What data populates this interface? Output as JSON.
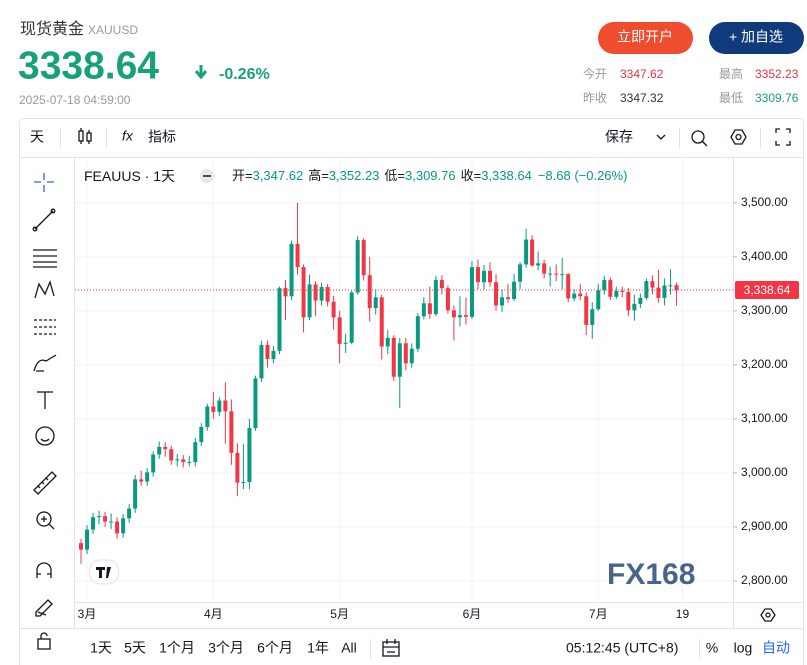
{
  "header": {
    "name": "现货黄金",
    "symbol": "XAUUSD",
    "price": "3338.64",
    "change": "-0.26%",
    "time": "2025-07-18 04:59:00",
    "buttons": [
      "立即开户",
      "+ 加自选"
    ],
    "stats": [
      {
        "label": "今开",
        "value": "3347.62"
      },
      {
        "label": "最高",
        "value": "3352.23"
      },
      {
        "label": "昨收",
        "value": "3347.32"
      },
      {
        "label": "最低",
        "value": "3309.76"
      }
    ]
  },
  "toolbar": {
    "interval": "天",
    "indicators": "指标",
    "save": "保存"
  },
  "ranges": [
    "1天",
    "5天",
    "1个月",
    "3个月",
    "6个月",
    "1年",
    "All"
  ],
  "clock": "05:12:45 (UTC+8)",
  "scale_options": [
    "%",
    "log",
    "自动"
  ],
  "watermark": "FX168",
  "chart_data": {
    "type": "candlestick",
    "title": "FEAUUS · 1天",
    "legend": [
      {
        "label": "开=",
        "value": "3,347.62"
      },
      {
        "label": "高=",
        "value": "3,352.23"
      },
      {
        "label": "低=",
        "value": "3,309.76"
      },
      {
        "label": "收=",
        "value": "3,338.64"
      }
    ],
    "change": "−8.68 (−0.26%)",
    "up_color": "#089981",
    "down_color": "#f23645",
    "open": [
      2870,
      2858,
      2895,
      2918,
      2920,
      2910,
      2910,
      2888,
      2916,
      2934,
      2988,
      2984,
      3001,
      3034,
      3048,
      3044,
      3023,
      3025,
      3020,
      3020,
      3057,
      3085,
      3123,
      3113,
      3134,
      3114,
      3037,
      2982,
      2983,
      3083,
      3175,
      3237,
      3211,
      3226,
      3342,
      3327,
      3424,
      3381,
      3288,
      3349,
      3319,
      3344,
      3317,
      3288,
      3239,
      3241,
      3334,
      3431,
      3366,
      3305,
      3325,
      3234,
      3250,
      3178,
      3240,
      3203,
      3230,
      3290,
      3314,
      3294,
      3357,
      3342,
      3301,
      3288,
      3292,
      3289,
      3381,
      3353,
      3374,
      3353,
      3310,
      3325,
      3322,
      3354,
      3386,
      3432,
      3384,
      3388,
      3369,
      3369,
      3368,
      3368,
      3323,
      3332,
      3327,
      3274,
      3303,
      3338,
      3357,
      3326,
      3337,
      3335,
      3301,
      3313,
      3324,
      3355,
      3343,
      3324,
      3347,
      3347.62
    ],
    "high": [
      2878,
      2903,
      2926,
      2930,
      2928,
      2925,
      2918,
      2924,
      2942,
      2996,
      3004,
      3009,
      3040,
      3058,
      3057,
      3050,
      3035,
      3033,
      3032,
      3065,
      3092,
      3128,
      3150,
      3140,
      3168,
      3136,
      3055,
      3054,
      3100,
      3180,
      3245,
      3245,
      3235,
      3345,
      3357,
      3430,
      3500,
      3386,
      3367,
      3355,
      3352,
      3350,
      3328,
      3300,
      3258,
      3337,
      3438,
      3435,
      3400,
      3340,
      3330,
      3265,
      3255,
      3250,
      3250,
      3240,
      3296,
      3325,
      3345,
      3365,
      3366,
      3347,
      3310,
      3327,
      3325,
      3392,
      3395,
      3385,
      3390,
      3368,
      3340,
      3350,
      3368,
      3390,
      3452,
      3440,
      3410,
      3395,
      3382,
      3386,
      3398,
      3370,
      3340,
      3350,
      3334,
      3316,
      3350,
      3365,
      3362,
      3345,
      3345,
      3342,
      3330,
      3332,
      3360,
      3366,
      3376,
      3360,
      3377,
      3352.23
    ],
    "low": [
      2832,
      2850,
      2887,
      2905,
      2900,
      2896,
      2878,
      2880,
      2908,
      2926,
      2976,
      2976,
      2993,
      3026,
      3030,
      3015,
      3012,
      3010,
      3012,
      3012,
      3050,
      3078,
      3100,
      3105,
      3054,
      3015,
      2957,
      2970,
      2970,
      3078,
      3168,
      3195,
      3203,
      3220,
      3283,
      3320,
      3367,
      3260,
      3283,
      3290,
      3310,
      3308,
      3265,
      3203,
      3222,
      3238,
      3330,
      3356,
      3280,
      3293,
      3210,
      3220,
      3170,
      3120,
      3190,
      3195,
      3224,
      3284,
      3285,
      3290,
      3330,
      3295,
      3245,
      3271,
      3275,
      3285,
      3340,
      3340,
      3345,
      3300,
      3298,
      3315,
      3318,
      3340,
      3380,
      3382,
      3375,
      3360,
      3345,
      3355,
      3340,
      3316,
      3318,
      3320,
      3255,
      3248,
      3300,
      3330,
      3320,
      3322,
      3325,
      3290,
      3282,
      3305,
      3320,
      3330,
      3315,
      3310,
      3330,
      3309.76
    ],
    "close": [
      2858,
      2895,
      2918,
      2920,
      2910,
      2910,
      2888,
      2916,
      2934,
      2988,
      2984,
      3001,
      3034,
      3048,
      3044,
      3023,
      3025,
      3020,
      3020,
      3057,
      3085,
      3123,
      3113,
      3134,
      3114,
      3037,
      2982,
      2983,
      3083,
      3175,
      3237,
      3211,
      3226,
      3342,
      3327,
      3424,
      3381,
      3288,
      3349,
      3319,
      3344,
      3317,
      3288,
      3239,
      3241,
      3334,
      3431,
      3366,
      3305,
      3325,
      3234,
      3250,
      3178,
      3240,
      3203,
      3230,
      3290,
      3314,
      3294,
      3357,
      3342,
      3301,
      3288,
      3292,
      3289,
      3381,
      3353,
      3374,
      3353,
      3310,
      3325,
      3322,
      3354,
      3386,
      3432,
      3384,
      3388,
      3369,
      3369,
      3368,
      3368,
      3323,
      3332,
      3327,
      3274,
      3303,
      3338,
      3357,
      3326,
      3337,
      3335,
      3301,
      3313,
      3324,
      3355,
      3343,
      3324,
      3347,
      3347.32,
      3338.64
    ],
    "last_price_label": "3,338.64",
    "xlim": [
      -1,
      108.4
    ],
    "xticks": [
      {
        "value": 1,
        "label": "3月"
      },
      {
        "value": 22,
        "label": "4月"
      },
      {
        "value": 43,
        "label": "5月"
      },
      {
        "value": 65,
        "label": "6月"
      },
      {
        "value": 86,
        "label": "7月"
      },
      {
        "value": 100,
        "label": "19"
      }
    ],
    "ylim": [
      2761,
      3583
    ],
    "yticks": [
      {
        "value": 2800,
        "label": "2,800.00"
      },
      {
        "value": 2900,
        "label": "2,900.00"
      },
      {
        "value": 3000,
        "label": "3,000.00"
      },
      {
        "value": 3100,
        "label": "3,100.00"
      },
      {
        "value": 3200,
        "label": "3,200.00"
      },
      {
        "value": 3300,
        "label": "3,300.00"
      },
      {
        "value": 3400,
        "label": "3,400.00"
      },
      {
        "value": 3500,
        "label": "3,500.00"
      }
    ],
    "grid": true
  }
}
